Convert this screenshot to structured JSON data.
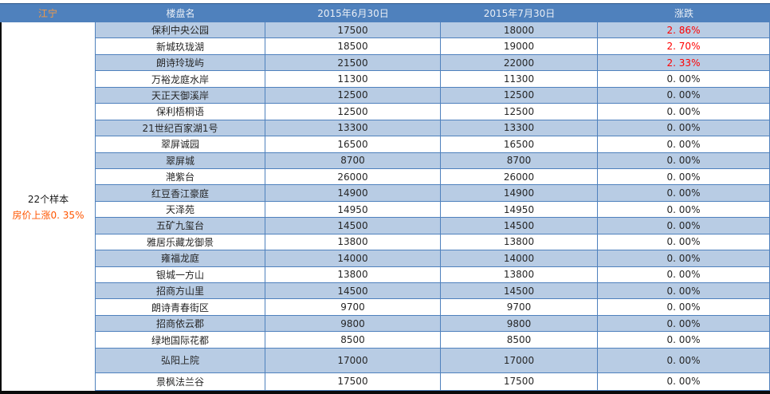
{
  "table": {
    "region_label": "江宁",
    "columns": {
      "name": "楼盘名",
      "date1": "2015年6月30日",
      "date2": "2015年7月30日",
      "change": "涨跌"
    },
    "summary": {
      "sample_count": "22个样本",
      "price_change": "房价上涨0. 35%"
    },
    "rows": [
      {
        "name": "保利中央公园",
        "jun": "17500",
        "jul": "18000",
        "chg": "2. 86%",
        "up": true
      },
      {
        "name": "新城玖珑湖",
        "jun": "18500",
        "jul": "19000",
        "chg": "2. 70%",
        "up": true
      },
      {
        "name": "朗诗玲珑屿",
        "jun": "21500",
        "jul": "22000",
        "chg": "2. 33%",
        "up": true
      },
      {
        "name": "万裕龙庭水岸",
        "jun": "11300",
        "jul": "11300",
        "chg": "0. 00%",
        "up": false
      },
      {
        "name": "天正天御溪岸",
        "jun": "12500",
        "jul": "12500",
        "chg": "0. 00%",
        "up": false
      },
      {
        "name": "保利梧桐语",
        "jun": "12500",
        "jul": "12500",
        "chg": "0. 00%",
        "up": false
      },
      {
        "name": "21世纪百家湖1号",
        "jun": "13300",
        "jul": "13300",
        "chg": "0. 00%",
        "up": false
      },
      {
        "name": "翠屏诚园",
        "jun": "16500",
        "jul": "16500",
        "chg": "0. 00%",
        "up": false
      },
      {
        "name": "翠屏城",
        "jun": "8700",
        "jul": "8700",
        "chg": "0. 00%",
        "up": false
      },
      {
        "name": "滟紫台",
        "jun": "26000",
        "jul": "26000",
        "chg": "0. 00%",
        "up": false
      },
      {
        "name": "红豆香江豪庭",
        "jun": "14900",
        "jul": "14900",
        "chg": "0. 00%",
        "up": false
      },
      {
        "name": "天泽苑",
        "jun": "14950",
        "jul": "14950",
        "chg": "0. 00%",
        "up": false
      },
      {
        "name": "五矿九玺台",
        "jun": "14500",
        "jul": "14500",
        "chg": "0. 00%",
        "up": false
      },
      {
        "name": "雅居乐藏龙御景",
        "jun": "13800",
        "jul": "13800",
        "chg": "0. 00%",
        "up": false
      },
      {
        "name": "雍福龙庭",
        "jun": "14000",
        "jul": "14000",
        "chg": "0. 00%",
        "up": false
      },
      {
        "name": "银城一方山",
        "jun": "13800",
        "jul": "13800",
        "chg": "0. 00%",
        "up": false
      },
      {
        "name": "招商方山里",
        "jun": "14500",
        "jul": "14500",
        "chg": "0. 00%",
        "up": false
      },
      {
        "name": "朗诗青春街区",
        "jun": "9700",
        "jul": "9700",
        "chg": "0. 00%",
        "up": false
      },
      {
        "name": "招商依云郡",
        "jun": "9800",
        "jul": "9800",
        "chg": "0. 00%",
        "up": false
      },
      {
        "name": "绿地国际花都",
        "jun": "8500",
        "jul": "8500",
        "chg": "0. 00%",
        "up": false
      },
      {
        "name": "弘阳上院",
        "jun": "17000",
        "jul": "17000",
        "chg": "0. 00%",
        "up": false
      },
      {
        "name": "景枫法兰谷",
        "jun": "17500",
        "jul": "17500",
        "chg": "0. 00%",
        "up": false
      }
    ]
  },
  "colors": {
    "header_bg": "#4F81BD",
    "band_row_bg": "#B8CCE4",
    "grid_border": "#4F81BD",
    "outer_border": "#0a0a0a",
    "header_text": "#E9EEF5",
    "region_label_text": "#F59A45",
    "gain_text": "#FF0000",
    "summary_change_text": "#FF5500",
    "body_text": "#262626"
  }
}
